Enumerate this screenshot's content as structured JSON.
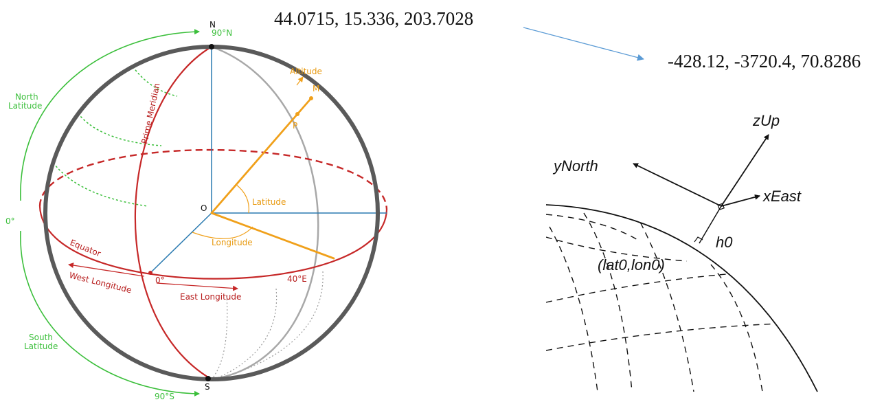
{
  "coords": {
    "source": "44.0715, 15.336, 203.7028",
    "target": "-428.12, -3720.4, 70.8286"
  },
  "sphere_labels": {
    "north_pole": "N",
    "north_90": "90°N",
    "south_pole": "S",
    "south_90": "90°S",
    "north_latitude_1": "North",
    "north_latitude_2": "Latitude",
    "south_latitude_1": "South",
    "south_latitude_2": "Latitude",
    "zero_deg_left": "0°",
    "prime_meridian": "Prime Meridian",
    "equator": "Equator",
    "west_longitude": "West Longitude",
    "east_longitude": "East Longitude",
    "zero_deg_equator": "0°",
    "forty_e": "40°E",
    "origin": "O",
    "latitude": "Latitude",
    "longitude": "Longitude",
    "altitude": "Altitude",
    "point_p": "P",
    "point_m": "M"
  },
  "enu_labels": {
    "z_up": "zUp",
    "y_north": "yNorth",
    "x_east": "xEast",
    "h0": "h0",
    "lat_lon": "(lat0,lon0)"
  },
  "colors": {
    "sphere": "#5a5a5a",
    "meridian": "#c62828",
    "latitude_arcs": "#3bbf3b",
    "axes": "#2a7ab0",
    "vector": "#f0a01a",
    "arrow": "#5b9bd5"
  }
}
